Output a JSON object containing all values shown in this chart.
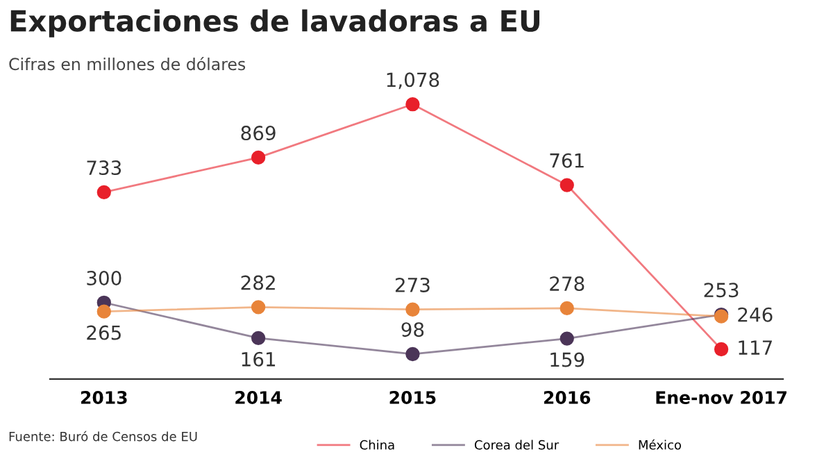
{
  "chart_data": {
    "type": "line",
    "title": "Exportaciones de lavadoras a EU",
    "subtitle": "Cifras en millones de dólares",
    "categories": [
      "2013",
      "2014",
      "2015",
      "2016",
      "Ene-nov 2017"
    ],
    "series": [
      {
        "name": "China",
        "color": "#e8202a",
        "values": [
          733,
          869,
          1078,
          761,
          117
        ],
        "value_labels": [
          "733",
          "869",
          "1,078",
          "761",
          "117"
        ]
      },
      {
        "name": "Corea del Sur",
        "color": "#4b3558",
        "values": [
          300,
          161,
          98,
          159,
          253
        ],
        "value_labels": [
          "300",
          "161",
          "98",
          "159",
          "253"
        ]
      },
      {
        "name": "México",
        "color": "#e8843a",
        "values": [
          265,
          282,
          273,
          278,
          246
        ],
        "value_labels": [
          "265",
          "282",
          "273",
          "278",
          "246"
        ]
      }
    ],
    "tick_labels": "x",
    "marker": "circle",
    "line_style": "solid",
    "legend": "bottom",
    "annotations": [
      "Fuente: Buró de Censos de EU"
    ]
  }
}
